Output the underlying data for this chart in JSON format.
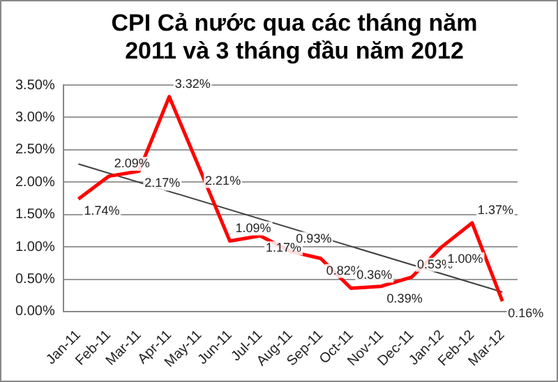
{
  "chart_data": {
    "type": "line",
    "title": "CPI Cả nước qua các tháng năm 2011 và 3 tháng đầu năm 2012",
    "categories": [
      "Jan-11",
      "Feb-11",
      "Mar-11",
      "Apr-11",
      "May-11",
      "Jun-11",
      "Jul-11",
      "Aug-11",
      "Sep-11",
      "Oct-11",
      "Nov-11",
      "Dec-11",
      "Jan-12",
      "Feb-12",
      "Mar-12"
    ],
    "series": [
      {
        "color": "#ff0000",
        "values": [
          1.74,
          2.09,
          2.17,
          3.32,
          2.21,
          1.09,
          1.17,
          0.93,
          0.82,
          0.36,
          0.39,
          0.53,
          1.0,
          1.37,
          0.16
        ],
        "value_labels": [
          "1.74%",
          "2.09%",
          "2.17%",
          "3.32%",
          "2.21%",
          "1.09%",
          "1.17%",
          "0.93%",
          "0.82%",
          "0.36%",
          "0.39%",
          "0.53%",
          "1.00%",
          "1.37%",
          "0.16%"
        ]
      },
      {
        "type": "line",
        "color": "#404040",
        "x": [
          "Jan-11",
          "Mar-12"
        ],
        "values": [
          2.28,
          0.3
        ]
      }
    ],
    "ylim": [
      0,
      3.5
    ],
    "yticks": [
      {
        "value": 0,
        "label": "0.00%"
      },
      {
        "value": 0.5,
        "label": "0.50%"
      },
      {
        "value": 1,
        "label": "1.00%"
      },
      {
        "value": 1.5,
        "label": "1.50%"
      },
      {
        "value": 2,
        "label": "2.00%"
      },
      {
        "value": 2.5,
        "label": "2.50%"
      },
      {
        "value": 3,
        "label": "3.00%"
      },
      {
        "value": 3.5,
        "label": "3.50%"
      }
    ],
    "grid": "y",
    "legend": false,
    "marker": "none",
    "line_style": "solid"
  }
}
